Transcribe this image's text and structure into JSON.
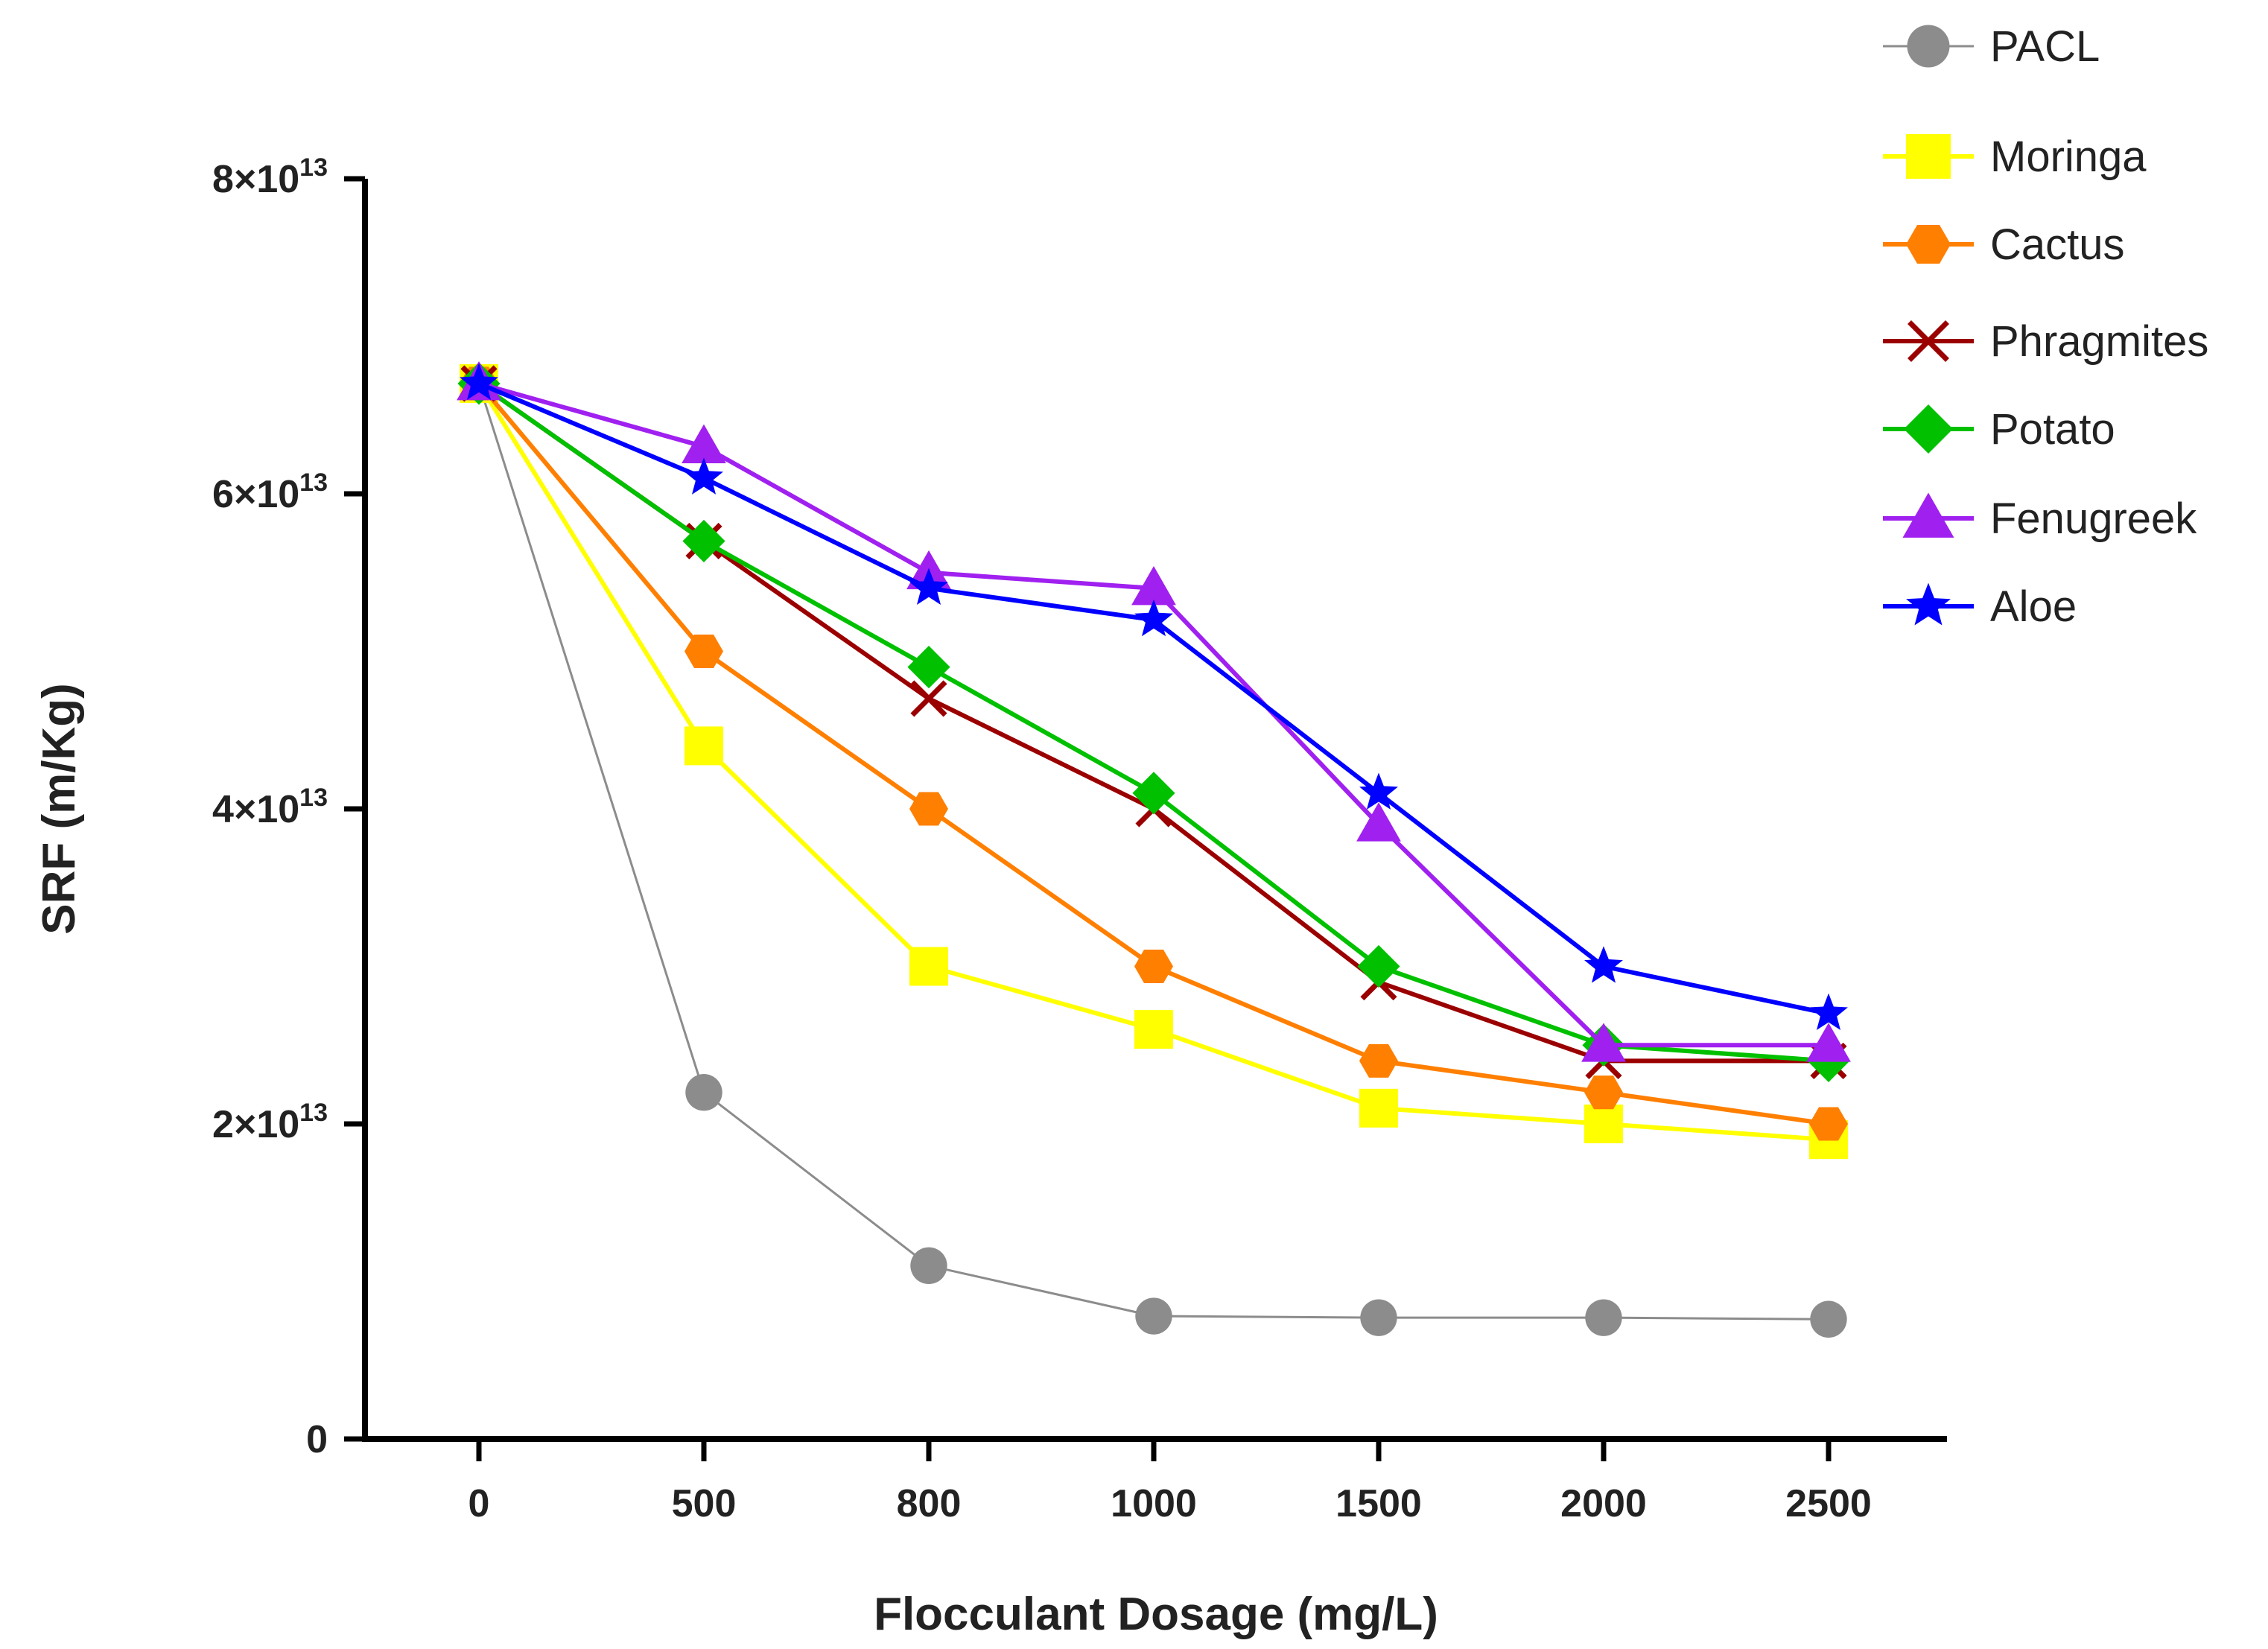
{
  "chart_data": {
    "type": "line",
    "xlabel": "Flocculant Dosage (mg/L)",
    "ylabel": "SRF (m/Kg)",
    "categories": [
      "0",
      "500",
      "800",
      "1000",
      "1500",
      "2000",
      "2500"
    ],
    "ylim": [
      0,
      80000000000000.0
    ],
    "yticks": [
      {
        "value": 0,
        "label": "0"
      },
      {
        "value": 20000000000000.0,
        "mantissa": "2×10",
        "exp": "13"
      },
      {
        "value": 40000000000000.0,
        "mantissa": "4×10",
        "exp": "13"
      },
      {
        "value": 60000000000000.0,
        "mantissa": "6×10",
        "exp": "13"
      },
      {
        "value": 80000000000000.0,
        "mantissa": "8×10",
        "exp": "13"
      }
    ],
    "legend_position": "top-right",
    "series": [
      {
        "name": "PACL",
        "color": "#8c8c8c",
        "marker": "circle",
        "thin": true,
        "values": [
          67000000000000.0,
          22000000000000.0,
          11000000000000.0,
          7800000000000.0,
          7700000000000.0,
          7700000000000.0,
          7600000000000.0
        ]
      },
      {
        "name": "Moringa",
        "color": "#ffff00",
        "marker": "square",
        "values": [
          67000000000000.0,
          44000000000000.0,
          30000000000000.0,
          26000000000000.0,
          21000000000000.0,
          20000000000000.0,
          19000000000000.0
        ]
      },
      {
        "name": "Cactus",
        "color": "#ff7f00",
        "marker": "hexagon",
        "values": [
          67000000000000.0,
          50000000000000.0,
          40000000000000.0,
          30000000000000.0,
          24000000000000.0,
          22000000000000.0,
          20000000000000.0
        ]
      },
      {
        "name": "Phragmites",
        "color": "#9b0000",
        "marker": "cross",
        "values": [
          67000000000000.0,
          57000000000000.0,
          47000000000000.0,
          40000000000000.0,
          29000000000000.0,
          24000000000000.0,
          24000000000000.0
        ]
      },
      {
        "name": "Potato",
        "color": "#00c000",
        "marker": "diamond",
        "values": [
          67000000000000.0,
          57000000000000.0,
          49000000000000.0,
          41000000000000.0,
          30000000000000.0,
          25000000000000.0,
          24000000000000.0
        ]
      },
      {
        "name": "Fenugreek",
        "color": "#a020f0",
        "marker": "triangle",
        "values": [
          67000000000000.0,
          63000000000000.0,
          55000000000000.0,
          54000000000000.0,
          39000000000000.0,
          25000000000000.0,
          25000000000000.0
        ]
      },
      {
        "name": "Aloe",
        "color": "#0000ff",
        "marker": "star",
        "values": [
          67000000000000.0,
          61000000000000.0,
          54000000000000.0,
          52000000000000.0,
          41000000000000.0,
          30000000000000.0,
          27000000000000.0
        ]
      }
    ]
  }
}
